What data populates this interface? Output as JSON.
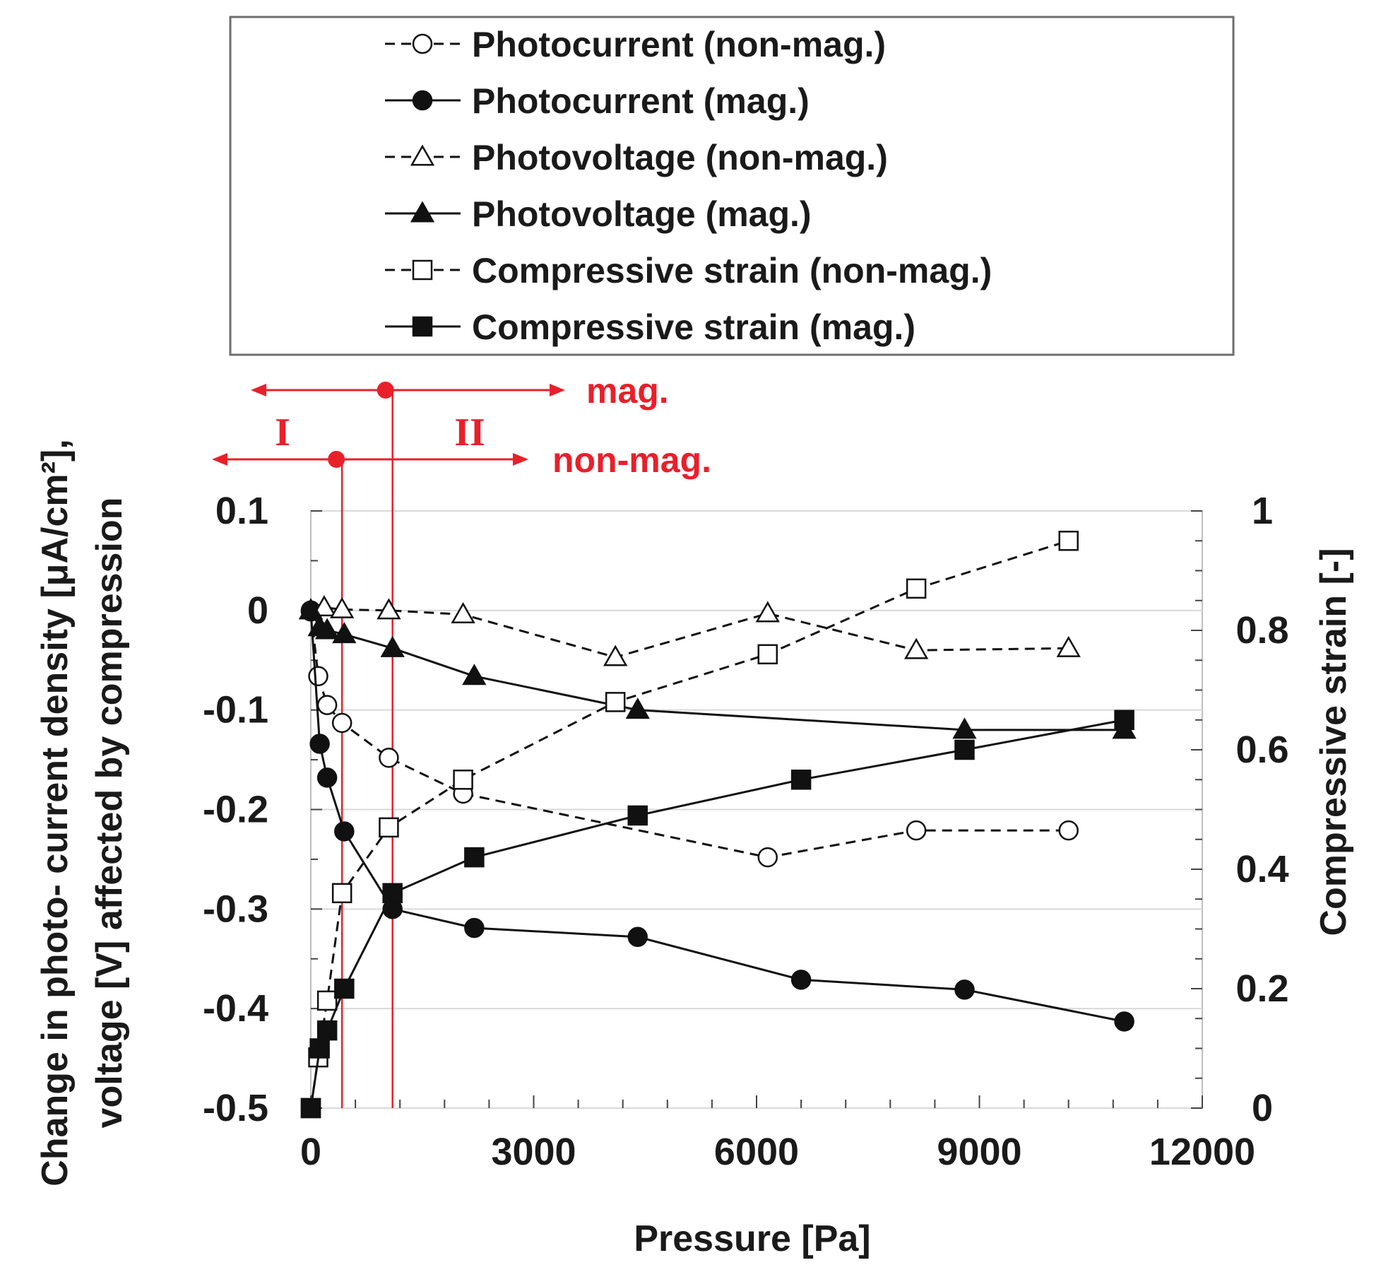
{
  "chart_data": {
    "type": "line",
    "xlabel": "Pressure [Pa]",
    "ylabel_lines": [
      "Change in photo- current density [μA/cm²],",
      "voltage [V] affected by compression"
    ],
    "y2label": "Compressive strain [-]",
    "xlim": [
      0,
      12000
    ],
    "ylim": [
      -0.5,
      0.1
    ],
    "y2lim": [
      0,
      1
    ],
    "x_ticks": [
      "0",
      "3000",
      "6000",
      "9000",
      "12000"
    ],
    "y_ticks": [
      "0.1",
      "0",
      "-0.1",
      "-0.2",
      "-0.3",
      "-0.4",
      "-0.5"
    ],
    "y2_ticks": [
      "1",
      "0.8",
      "0.6",
      "0.4",
      "0.2",
      "0"
    ],
    "grid": "horizontal",
    "legend_position": "top",
    "series": [
      {
        "name": "Photocurrent (non-mag.)",
        "axis": "left",
        "style": "dashed",
        "marker": "circle-open",
        "x": [
          0,
          100,
          220,
          420,
          1050,
          2050,
          6150,
          8150,
          10200
        ],
        "y": [
          -0.001,
          -0.066,
          -0.095,
          -0.113,
          -0.148,
          -0.184,
          -0.248,
          -0.221,
          -0.221
        ]
      },
      {
        "name": "Photocurrent (mag.)",
        "axis": "left",
        "style": "solid",
        "marker": "circle-filled",
        "x": [
          0,
          120,
          220,
          450,
          1100,
          2200,
          4400,
          6600,
          8800,
          10950
        ],
        "y": [
          0.0,
          -0.134,
          -0.168,
          -0.222,
          -0.3,
          -0.319,
          -0.328,
          -0.371,
          -0.381,
          -0.413
        ]
      },
      {
        "name": "Photovoltage (non-mag.)",
        "axis": "left",
        "style": "dashed",
        "marker": "triangle-open",
        "x": [
          0,
          180,
          420,
          1050,
          2050,
          4100,
          6150,
          8150,
          10200
        ],
        "y": [
          0.0,
          0.003,
          0.001,
          0.0,
          -0.004,
          -0.047,
          -0.003,
          -0.04,
          -0.038
        ]
      },
      {
        "name": "Photovoltage (mag.)",
        "axis": "left",
        "style": "solid",
        "marker": "triangle-filled",
        "x": [
          0,
          120,
          220,
          450,
          1100,
          2200,
          4400,
          8800,
          10950
        ],
        "y": [
          0.0,
          -0.017,
          -0.02,
          -0.024,
          -0.038,
          -0.066,
          -0.1,
          -0.12,
          -0.12
        ]
      },
      {
        "name": "Compressive strain (non-mag.)",
        "axis": "right",
        "style": "dashed",
        "marker": "square-open",
        "x": [
          0,
          100,
          220,
          420,
          1050,
          2050,
          4100,
          6150,
          8150,
          10200
        ],
        "y": [
          0.0,
          0.085,
          0.18,
          0.36,
          0.47,
          0.55,
          0.68,
          0.76,
          0.87,
          0.95
        ]
      },
      {
        "name": "Compressive strain (mag.)",
        "axis": "right",
        "style": "solid",
        "marker": "square-filled",
        "x": [
          0,
          120,
          220,
          450,
          1100,
          2200,
          4400,
          6600,
          8800,
          10950
        ],
        "y": [
          0.0,
          0.1,
          0.13,
          0.2,
          0.36,
          0.42,
          0.49,
          0.55,
          0.6,
          0.65
        ]
      }
    ],
    "annotations": {
      "mag_label": "mag.",
      "nonmag_label": "non-mag.",
      "region1_label": "I",
      "region2_label": "II",
      "mag_threshold_x": 1100,
      "nonmag_threshold_x": 420,
      "color": "#e8202a"
    }
  }
}
